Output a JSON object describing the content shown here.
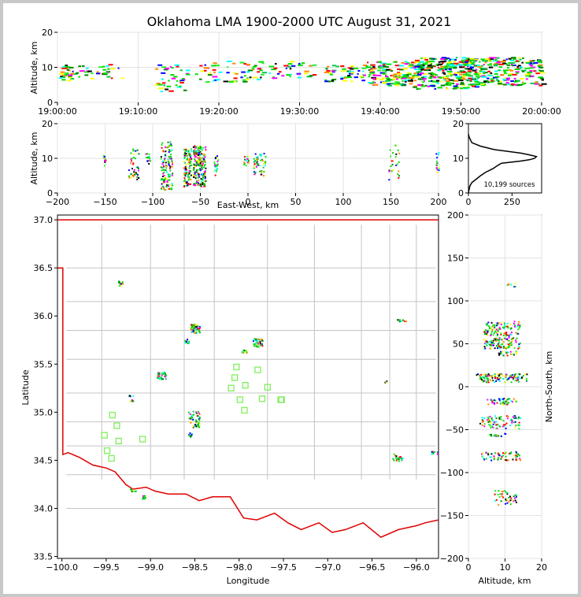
{
  "chart_data": [
    {
      "type": "scatter",
      "panel": "time-altitude",
      "title": "Oklahoma LMA 1900-2000 UTC August 31, 2021",
      "xlabel": "",
      "ylabel": "Altitude, km",
      "xlim": [
        "19:00:00",
        "20:00:00"
      ],
      "ylim": [
        0,
        20
      ],
      "xticks": [
        "19:00:00",
        "19:10:00",
        "19:20:00",
        "19:30:00",
        "19:40:00",
        "19:50:00",
        "20:00:00"
      ],
      "yticks": [
        "0",
        "10",
        "20"
      ],
      "clusters": [
        {
          "t": [
            "19:00:00",
            "19:02:00"
          ],
          "alt": [
            6,
            11
          ],
          "n": 30
        },
        {
          "t": [
            "19:02:00",
            "19:08:00"
          ],
          "alt": [
            7,
            11
          ],
          "n": 30
        },
        {
          "t": [
            "19:12:00",
            "19:16:00"
          ],
          "alt": [
            3,
            11
          ],
          "n": 40
        },
        {
          "t": [
            "19:17:00",
            "19:25:00"
          ],
          "alt": [
            6,
            12
          ],
          "n": 60
        },
        {
          "t": [
            "19:25:00",
            "19:32:00"
          ],
          "alt": [
            7,
            12
          ],
          "n": 40
        },
        {
          "t": [
            "19:33:00",
            "19:38:00"
          ],
          "alt": [
            6,
            11
          ],
          "n": 50
        },
        {
          "t": [
            "19:38:00",
            "19:44:00"
          ],
          "alt": [
            5,
            12
          ],
          "n": 150
        },
        {
          "t": [
            "19:44:00",
            "19:52:00"
          ],
          "alt": [
            4,
            13
          ],
          "n": 300
        },
        {
          "t": [
            "19:52:00",
            "20:00:00"
          ],
          "alt": [
            5,
            13
          ],
          "n": 200
        }
      ]
    },
    {
      "type": "scatter",
      "panel": "east-west-altitude",
      "xlabel": "East-West, km",
      "ylabel": "Altitude, km",
      "xlim": [
        -200,
        200
      ],
      "ylim": [
        0,
        20
      ],
      "xticks": [
        "−200",
        "−150",
        "−100",
        "−50",
        "0",
        "50",
        "100",
        "150",
        "200"
      ],
      "yticks": [
        "0",
        "10",
        "20"
      ],
      "clusters": [
        {
          "x": [
            -153,
            -150
          ],
          "alt": [
            8,
            11
          ],
          "n": 10
        },
        {
          "x": [
            -126,
            -115
          ],
          "alt": [
            4,
            13
          ],
          "n": 40
        },
        {
          "x": [
            -108,
            -103
          ],
          "alt": [
            8,
            12
          ],
          "n": 15
        },
        {
          "x": [
            -92,
            -80
          ],
          "alt": [
            1,
            15
          ],
          "n": 120
        },
        {
          "x": [
            -68,
            -60
          ],
          "alt": [
            2,
            13
          ],
          "n": 100
        },
        {
          "x": [
            -58,
            -45
          ],
          "alt": [
            2,
            14
          ],
          "n": 200
        },
        {
          "x": [
            -36,
            -32
          ],
          "alt": [
            5,
            12
          ],
          "n": 20
        },
        {
          "x": [
            -5,
            0
          ],
          "alt": [
            8,
            11
          ],
          "n": 15
        },
        {
          "x": [
            5,
            18
          ],
          "alt": [
            5,
            12
          ],
          "n": 50
        },
        {
          "x": [
            147,
            158
          ],
          "alt": [
            4,
            14
          ],
          "n": 25
        },
        {
          "x": [
            197,
            200
          ],
          "alt": [
            5,
            12
          ],
          "n": 15
        }
      ]
    },
    {
      "type": "line",
      "panel": "altitude-histogram",
      "xlim": [
        0,
        420
      ],
      "ylim": [
        0,
        20
      ],
      "xticks": [
        "0",
        "250"
      ],
      "yticks": [
        "0",
        "10",
        "20"
      ],
      "annotation": "10,199 sources",
      "profile": [
        [
          0,
          0
        ],
        [
          2,
          0.5
        ],
        [
          8,
          2
        ],
        [
          20,
          3
        ],
        [
          45,
          4
        ],
        [
          70,
          5
        ],
        [
          100,
          6
        ],
        [
          140,
          7
        ],
        [
          170,
          8
        ],
        [
          190,
          8.6
        ],
        [
          300,
          9.2
        ],
        [
          350,
          9.6
        ],
        [
          380,
          10
        ],
        [
          390,
          10.5
        ],
        [
          350,
          11
        ],
        [
          300,
          11.5
        ],
        [
          150,
          12.5
        ],
        [
          70,
          13.5
        ],
        [
          20,
          14.5
        ],
        [
          5,
          16
        ],
        [
          0,
          17
        ]
      ]
    },
    {
      "type": "scatter",
      "panel": "plan-view",
      "xlabel": "Longitude",
      "ylabel": "Latitude",
      "xlim": [
        -100.05,
        -95.75
      ],
      "ylim": [
        33.48,
        37.05
      ],
      "xticks": [
        "−100.0",
        "−99.5",
        "−99.0",
        "−98.5",
        "−98.0",
        "−97.5",
        "−97.0",
        "−96.5",
        "−96.0"
      ],
      "yticks": [
        "33.5",
        "34.0",
        "34.5",
        "35.0",
        "35.5",
        "36.0",
        "36.5",
        "37.0"
      ],
      "stations": [
        [
          -99.43,
          34.97
        ],
        [
          -99.38,
          34.86
        ],
        [
          -99.52,
          34.76
        ],
        [
          -99.36,
          34.7
        ],
        [
          -99.49,
          34.6
        ],
        [
          -99.44,
          34.52
        ],
        [
          -99.09,
          34.72
        ],
        [
          -98.03,
          35.47
        ],
        [
          -98.05,
          35.36
        ],
        [
          -98.09,
          35.25
        ],
        [
          -97.93,
          35.28
        ],
        [
          -97.79,
          35.44
        ],
        [
          -97.99,
          35.13
        ],
        [
          -97.94,
          35.02
        ],
        [
          -97.74,
          35.14
        ],
        [
          -97.68,
          35.26
        ],
        [
          -97.53,
          35.13
        ],
        [
          -97.52,
          35.13
        ]
      ],
      "clusters": [
        {
          "lon": [
            -99.37,
            -99.32
          ],
          "lat": [
            36.32,
            36.37
          ],
          "n": 15
        },
        {
          "lon": [
            -98.55,
            -98.45
          ],
          "lat": [
            35.83,
            35.92
          ],
          "n": 60
        },
        {
          "lon": [
            -98.62,
            -98.57
          ],
          "lat": [
            35.72,
            35.77
          ],
          "n": 15
        },
        {
          "lon": [
            -97.85,
            -97.74
          ],
          "lat": [
            35.68,
            35.77
          ],
          "n": 50
        },
        {
          "lon": [
            -97.98,
            -97.92
          ],
          "lat": [
            35.62,
            35.66
          ],
          "n": 10
        },
        {
          "lon": [
            -98.93,
            -98.83
          ],
          "lat": [
            35.35,
            35.42
          ],
          "n": 40
        },
        {
          "lon": [
            -99.25,
            -99.2
          ],
          "lat": [
            35.12,
            35.18
          ],
          "n": 10
        },
        {
          "lon": [
            -98.58,
            -98.45
          ],
          "lat": [
            34.85,
            35.02
          ],
          "n": 50
        },
        {
          "lon": [
            -98.58,
            -98.53
          ],
          "lat": [
            34.75,
            34.8
          ],
          "n": 10
        },
        {
          "lon": [
            -99.24,
            -99.17
          ],
          "lat": [
            34.16,
            34.21
          ],
          "n": 10
        },
        {
          "lon": [
            -99.1,
            -99.06
          ],
          "lat": [
            34.1,
            34.14
          ],
          "n": 8
        },
        {
          "lon": [
            -96.28,
            -96.15
          ],
          "lat": [
            34.5,
            34.58
          ],
          "n": 20
        },
        {
          "lon": [
            -96.22,
            -96.12
          ],
          "lat": [
            35.94,
            35.97
          ],
          "n": 10
        },
        {
          "lon": [
            -95.84,
            -95.76
          ],
          "lat": [
            34.57,
            34.6
          ],
          "n": 10
        },
        {
          "lon": [
            -96.37,
            -96.34
          ],
          "lat": [
            35.31,
            35.33
          ],
          "n": 4
        }
      ]
    },
    {
      "type": "scatter",
      "panel": "altitude-north-south",
      "xlabel": "Altitude, km",
      "ylabel": "North-South, km",
      "xlim": [
        0,
        20
      ],
      "ylim": [
        -200,
        200
      ],
      "xticks": [
        "0",
        "10",
        "20"
      ],
      "yticks": [
        "−200",
        "−150",
        "−100",
        "−50",
        "0",
        "50",
        "100",
        "150",
        "200"
      ],
      "clusters": [
        {
          "alt": [
            10,
            13
          ],
          "ns": [
            117,
            122
          ],
          "n": 8
        },
        {
          "alt": [
            4,
            14
          ],
          "ns": [
            60,
            77
          ],
          "n": 100
        },
        {
          "alt": [
            4,
            14
          ],
          "ns": [
            45,
            58
          ],
          "n": 100
        },
        {
          "alt": [
            8,
            13
          ],
          "ns": [
            37,
            42
          ],
          "n": 20
        },
        {
          "alt": [
            2,
            16
          ],
          "ns": [
            6,
            16
          ],
          "n": 120
        },
        {
          "alt": [
            5,
            13
          ],
          "ns": [
            -20,
            -13
          ],
          "n": 40
        },
        {
          "alt": [
            3,
            14
          ],
          "ns": [
            -48,
            -33
          ],
          "n": 80
        },
        {
          "alt": [
            5,
            10
          ],
          "ns": [
            -57,
            -53
          ],
          "n": 15
        },
        {
          "alt": [
            3,
            14
          ],
          "ns": [
            -85,
            -75
          ],
          "n": 60
        },
        {
          "alt": [
            7,
            13
          ],
          "ns": [
            -137,
            -120
          ],
          "n": 40
        }
      ]
    }
  ]
}
